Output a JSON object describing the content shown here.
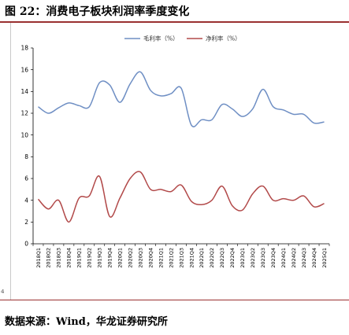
{
  "page_title": "图 22：消费电子板块利润率季度变化",
  "source_note": "数据来源：Wind，华龙证券研究所",
  "left_margin_number": "4",
  "chart_data": {
    "type": "line",
    "title": "",
    "xlabel": "",
    "ylabel": "",
    "ylim": [
      0,
      18
    ],
    "yticks": [
      0,
      2,
      4,
      6,
      8,
      10,
      12,
      14,
      16,
      18
    ],
    "grid": false,
    "legend_position": "top",
    "categories": [
      "2018Q1",
      "2018Q2",
      "2018Q3",
      "2018Q4",
      "2019Q1",
      "2019Q2",
      "2019Q3",
      "2019Q4",
      "2020Q1",
      "2020Q2",
      "2020Q3",
      "2020Q4",
      "2021Q1",
      "2021Q2",
      "2021Q3",
      "2021Q4",
      "2022Q1",
      "2022Q2",
      "2022Q3",
      "2022Q4",
      "2023Q1",
      "2023Q2",
      "2023Q3",
      "2023Q4",
      "2024Q1",
      "2024Q2",
      "2024Q3",
      "2024Q4",
      "2025Q1"
    ],
    "series": [
      {
        "name": "毛利率（%）",
        "color": "#6f8fc4",
        "values": [
          12.6,
          12.0,
          12.5,
          12.95,
          12.7,
          12.6,
          14.8,
          14.6,
          13.0,
          14.7,
          15.8,
          14.1,
          13.6,
          13.8,
          14.3,
          10.9,
          11.4,
          11.4,
          12.8,
          12.4,
          11.7,
          12.4,
          14.2,
          12.6,
          12.3,
          11.9,
          11.9,
          11.1,
          11.2
        ]
      },
      {
        "name": "净利率（%）",
        "color": "#b24a4a",
        "values": [
          4.1,
          3.2,
          4.0,
          2.0,
          4.2,
          4.4,
          6.2,
          2.5,
          4.2,
          6.0,
          6.6,
          5.0,
          5.0,
          4.8,
          5.4,
          3.9,
          3.6,
          4.0,
          5.3,
          3.5,
          3.1,
          4.6,
          5.3,
          4.0,
          4.15,
          4.0,
          4.4,
          3.4,
          3.7
        ]
      }
    ]
  }
}
